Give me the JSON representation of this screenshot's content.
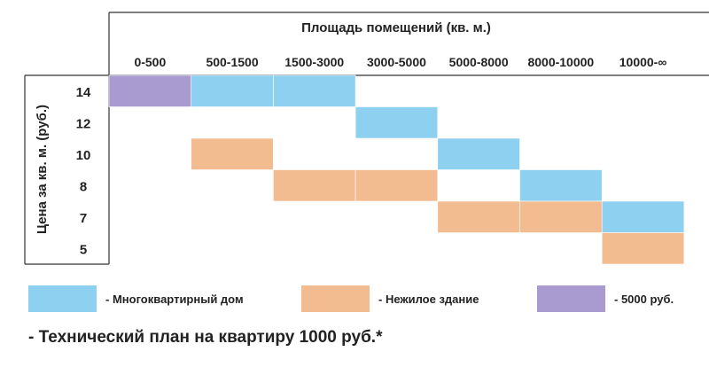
{
  "chart_data": {
    "type": "heatmap",
    "title": "Площадь помещений (кв. м.)",
    "ylabel": "Цена за кв. м. (руб.)",
    "columns": [
      "0-500",
      "500-1500",
      "1500-3000",
      "3000-5000",
      "5000-8000",
      "8000-10000",
      "10000-∞"
    ],
    "rows": [
      "14",
      "12",
      "10",
      "8",
      "7",
      "5"
    ],
    "categories": [
      {
        "key": "apartment",
        "label": "- Многоквартирный дом",
        "color": "#8dd0f0"
      },
      {
        "key": "nonres",
        "label": "- Нежилое здание",
        "color": "#f2bb90"
      },
      {
        "key": "fixed",
        "label": "- 5000 руб.",
        "color": "#a99bd0"
      }
    ],
    "cells": [
      {
        "row": "14",
        "col": "0-500",
        "category": "fixed"
      },
      {
        "row": "14",
        "col": "500-1500",
        "category": "apartment"
      },
      {
        "row": "14",
        "col": "1500-3000",
        "category": "apartment"
      },
      {
        "row": "12",
        "col": "3000-5000",
        "category": "apartment"
      },
      {
        "row": "10",
        "col": "500-1500",
        "category": "nonres"
      },
      {
        "row": "10",
        "col": "5000-8000",
        "category": "apartment"
      },
      {
        "row": "8",
        "col": "1500-3000",
        "category": "nonres"
      },
      {
        "row": "8",
        "col": "3000-5000",
        "category": "nonres"
      },
      {
        "row": "8",
        "col": "8000-10000",
        "category": "apartment"
      },
      {
        "row": "7",
        "col": "5000-8000",
        "category": "nonres"
      },
      {
        "row": "7",
        "col": "8000-10000",
        "category": "nonres"
      },
      {
        "row": "7",
        "col": "10000-∞",
        "category": "apartment"
      },
      {
        "row": "5",
        "col": "10000-∞",
        "category": "nonres"
      }
    ]
  },
  "footnote": "- Технический план на квартиру 1000 руб.*"
}
